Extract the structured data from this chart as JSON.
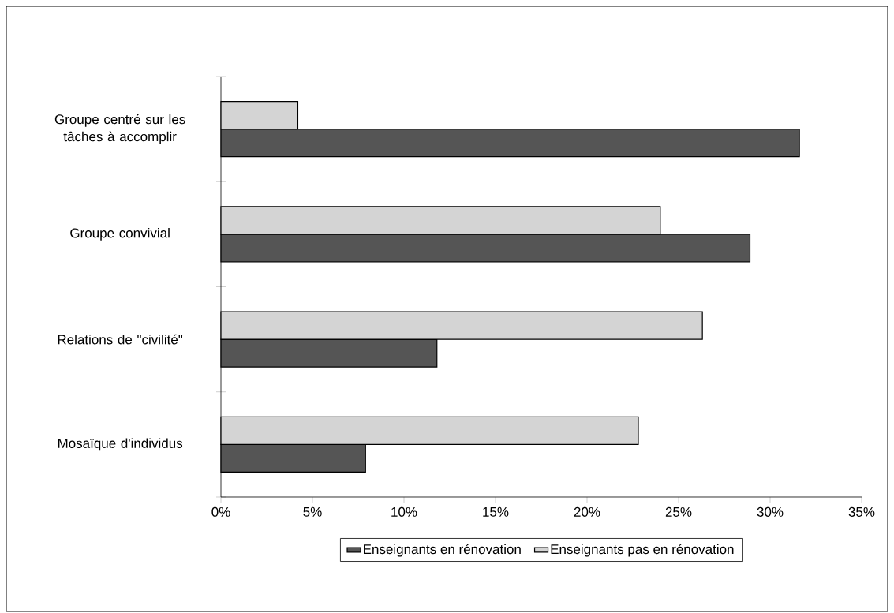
{
  "chart_data": {
    "type": "bar",
    "orientation": "horizontal",
    "categories": [
      "Groupe centré sur les tâches à accomplir",
      "Groupe convivial",
      "Relations de \"civilité\"",
      "Mosaïque d'individus"
    ],
    "series": [
      {
        "name": "Enseignants en rénovation",
        "color": "#555555",
        "values": [
          31.6,
          28.9,
          11.8,
          7.9
        ]
      },
      {
        "name": "Enseignants pas en rénovation",
        "color": "#d4d4d4",
        "values": [
          4.2,
          24.0,
          26.3,
          22.8
        ]
      }
    ],
    "xlim": [
      0,
      35
    ],
    "xticks": [
      {
        "value": 0,
        "label": "0%"
      },
      {
        "value": 5,
        "label": "5%"
      },
      {
        "value": 10,
        "label": "10%"
      },
      {
        "value": 15,
        "label": "15%"
      },
      {
        "value": 20,
        "label": "20%"
      },
      {
        "value": 25,
        "label": "25%"
      },
      {
        "value": 30,
        "label": "30%"
      },
      {
        "value": 35,
        "label": "35%"
      }
    ],
    "grid": false,
    "legend": "bottom"
  }
}
